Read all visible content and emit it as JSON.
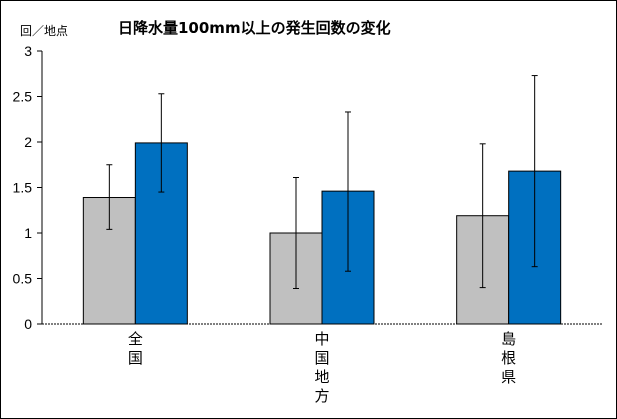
{
  "chart_data": {
    "type": "bar",
    "title": "日降水量100mm以上の発生回数の変化",
    "ylabel": "回／地点",
    "xlabel": "",
    "ylim": [
      0,
      3
    ],
    "yticks": [
      "0",
      "0.5",
      "1",
      "1.5",
      "2",
      "2.5",
      "3"
    ],
    "categories": [
      "全国",
      "中国地方",
      "島根県"
    ],
    "grid": false,
    "series": [
      {
        "color": "#c0c0c0",
        "values": [
          1.39,
          1.0,
          1.19
        ],
        "err_low": [
          1.04,
          0.39,
          0.4
        ],
        "err_high": [
          1.75,
          1.61,
          1.98
        ]
      },
      {
        "color": "#0070c0",
        "values": [
          1.99,
          1.46,
          1.68
        ],
        "err_low": [
          1.45,
          0.58,
          0.63
        ],
        "err_high": [
          2.53,
          2.33,
          2.73
        ]
      }
    ]
  }
}
